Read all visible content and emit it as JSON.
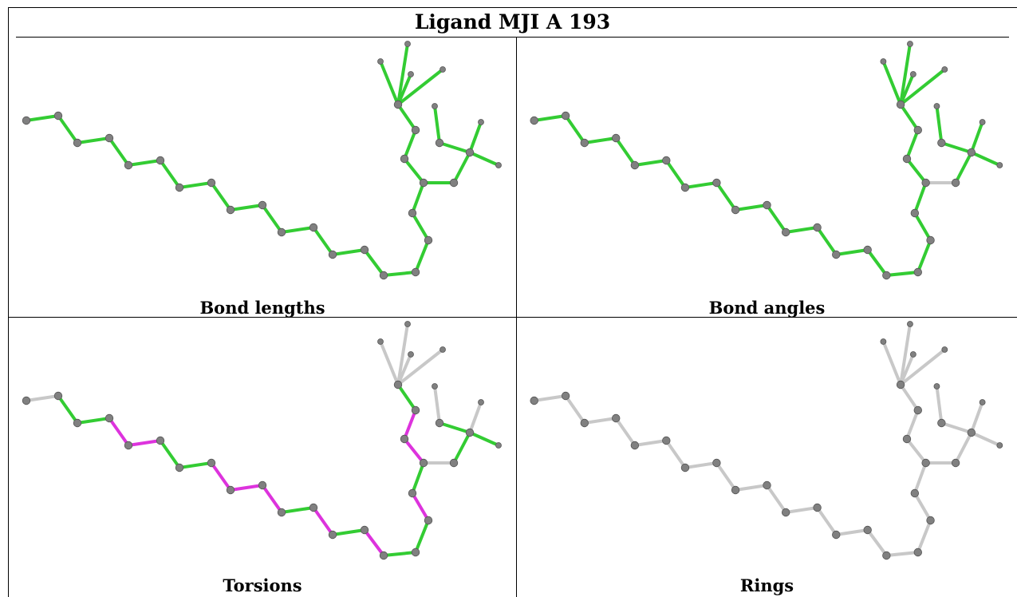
{
  "title": "Ligand MJI A 193",
  "panels": [
    {
      "label": "Bond lengths",
      "mode": "lengths"
    },
    {
      "label": "Bond angles",
      "mode": "angles"
    },
    {
      "label": "Torsions",
      "mode": "torsions"
    },
    {
      "label": "Rings",
      "mode": "rings"
    }
  ],
  "colors": {
    "valid": "#33cc33",
    "outlier": "#dd33dd",
    "unassessed": "#c8c8c8",
    "atom": "#808080",
    "atom_edge": "#555555"
  }
}
